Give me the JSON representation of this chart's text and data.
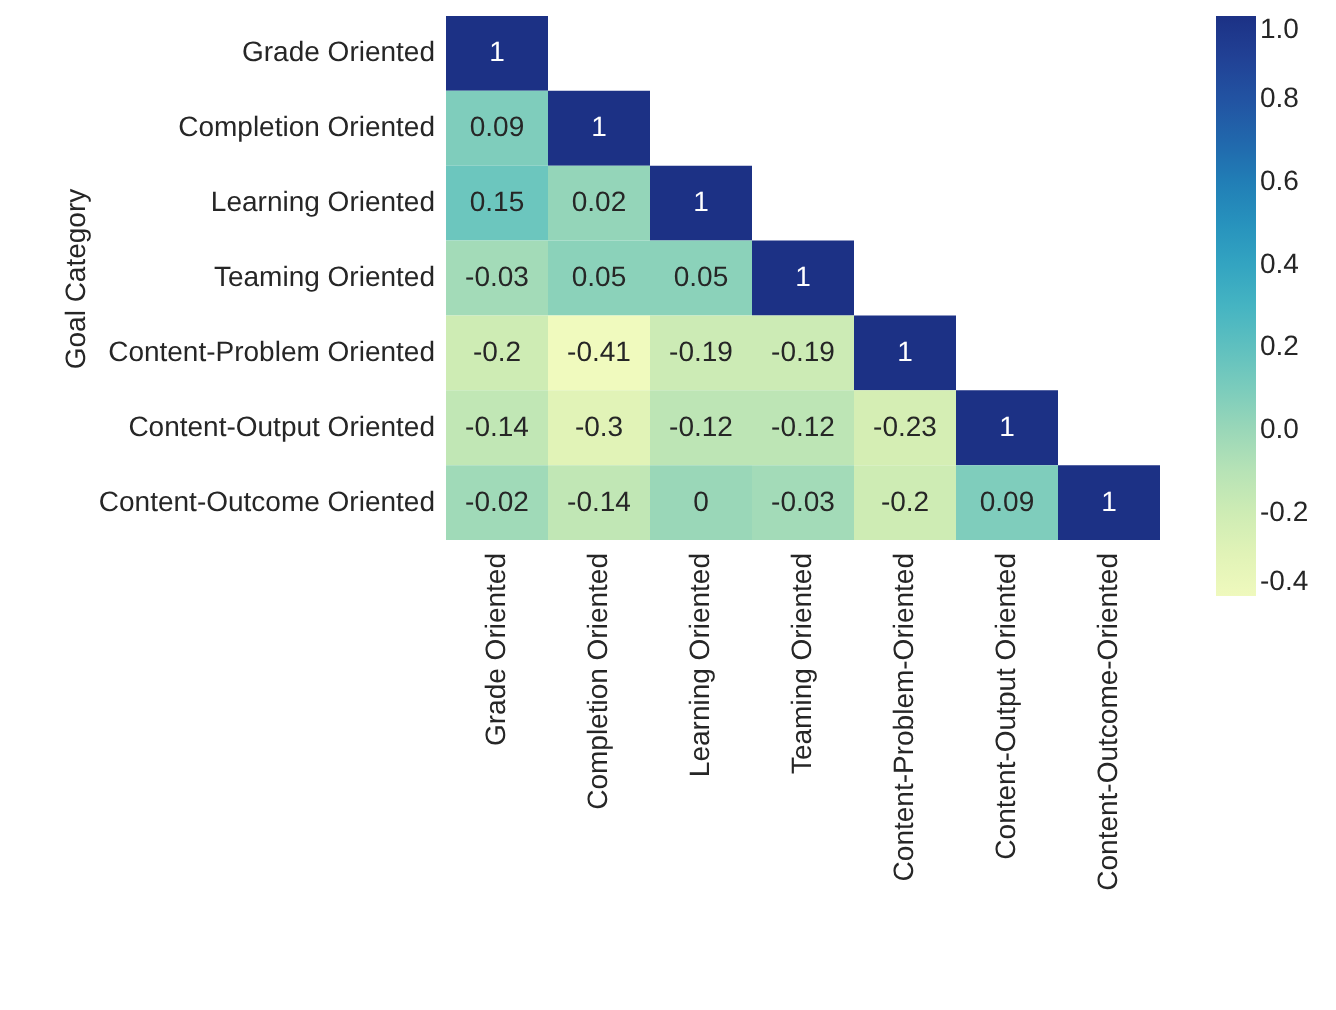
{
  "chart_data": {
    "type": "heatmap",
    "ylabel": "Goal Category",
    "data_labels": true,
    "categories": [
      "Grade Oriented",
      "Completion Oriented",
      "Learning Oriented",
      "Teaming Oriented",
      "Content-Problem-Oriented",
      "Content-Output Oriented",
      "Content-Outcome-Oriented"
    ],
    "y_categories": [
      "Grade Oriented",
      "Completion Oriented",
      "Learning Oriented",
      "Teaming Oriented",
      "Content-Problem Oriented",
      "Content-Output Oriented",
      "Content-Outcome Oriented"
    ],
    "cells": [
      [
        1,
        null,
        null,
        null,
        null,
        null,
        null
      ],
      [
        0.09,
        1,
        null,
        null,
        null,
        null,
        null
      ],
      [
        0.15,
        0.02,
        1,
        null,
        null,
        null,
        null
      ],
      [
        -0.03,
        0.05,
        0.05,
        1,
        null,
        null,
        null
      ],
      [
        -0.2,
        -0.41,
        -0.19,
        -0.19,
        1,
        null,
        null
      ],
      [
        -0.14,
        -0.3,
        -0.12,
        -0.12,
        -0.23,
        1,
        null
      ],
      [
        -0.02,
        -0.14,
        0,
        -0.03,
        -0.2,
        0.09,
        1
      ]
    ],
    "clim": [
      -0.4,
      1.0
    ],
    "cticks": [
      {
        "value": -0.4,
        "label": "-0.4"
      },
      {
        "value": -0.2,
        "label": "-0.2"
      },
      {
        "value": 0,
        "label": "0.0"
      },
      {
        "value": 0.2,
        "label": "0.2"
      },
      {
        "value": 0.4,
        "label": "0.4"
      },
      {
        "value": 0.6,
        "label": "0.6"
      },
      {
        "value": 0.8,
        "label": "0.8"
      },
      {
        "value": 1,
        "label": "1.0"
      }
    ]
  }
}
